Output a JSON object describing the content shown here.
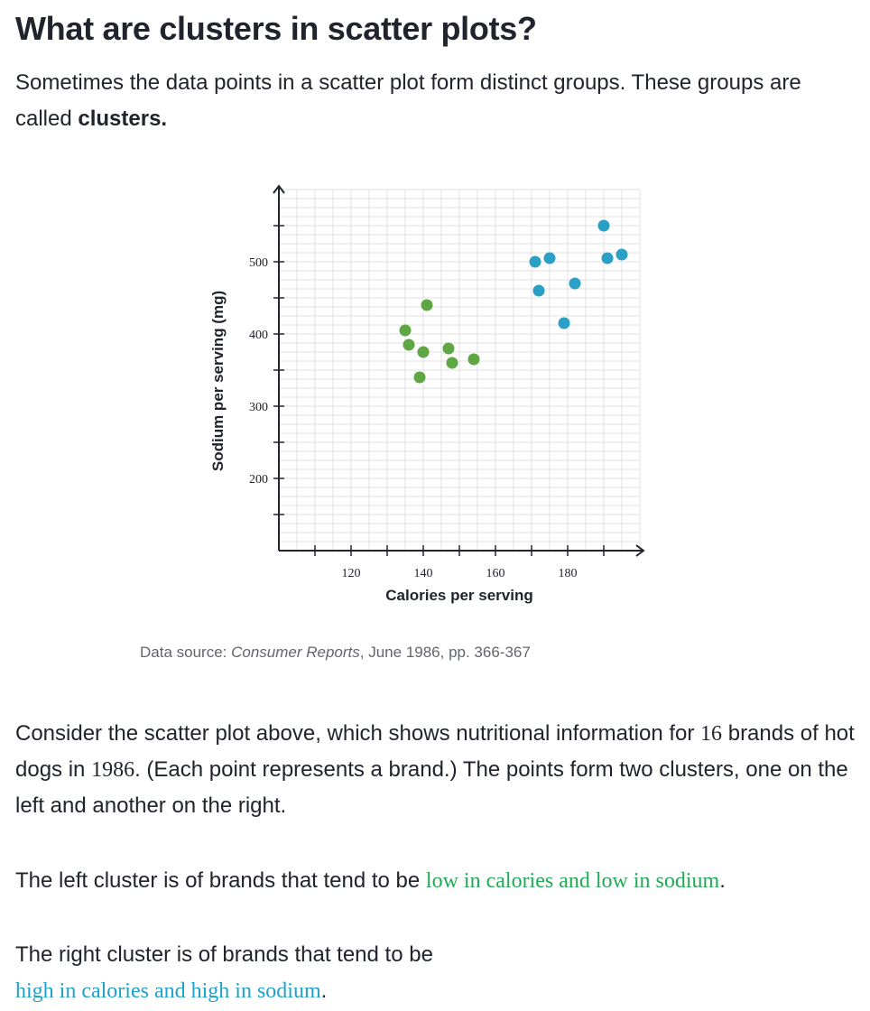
{
  "heading": "What are clusters in scatter plots?",
  "intro": {
    "text_before": "Sometimes the data points in a scatter plot form distinct groups. These groups are called ",
    "bold": "clusters."
  },
  "chart_data": {
    "type": "scatter",
    "title": "",
    "xlabel": "Calories per serving",
    "ylabel": "Sodium per serving (mg)",
    "xlim": [
      100,
      200
    ],
    "ylim": [
      100,
      600
    ],
    "x_ticks": [
      120,
      140,
      160,
      180
    ],
    "y_ticks": [
      200,
      300,
      400,
      500
    ],
    "grid": true,
    "series": [
      {
        "color": "#5fa744",
        "points": [
          {
            "x": 135,
            "y": 405
          },
          {
            "x": 136,
            "y": 385
          },
          {
            "x": 140,
            "y": 375
          },
          {
            "x": 141,
            "y": 440
          },
          {
            "x": 139,
            "y": 340
          },
          {
            "x": 147,
            "y": 380
          },
          {
            "x": 148,
            "y": 360
          },
          {
            "x": 154,
            "y": 365
          }
        ]
      },
      {
        "color": "#2c9fc4",
        "points": [
          {
            "x": 171,
            "y": 500
          },
          {
            "x": 175,
            "y": 505
          },
          {
            "x": 172,
            "y": 460
          },
          {
            "x": 182,
            "y": 470
          },
          {
            "x": 179,
            "y": 415
          },
          {
            "x": 190,
            "y": 550
          },
          {
            "x": 191,
            "y": 505
          },
          {
            "x": 195,
            "y": 510
          }
        ]
      }
    ]
  },
  "source": {
    "prefix": "Data source: ",
    "publication": "Consumer Reports",
    "suffix": ", June 1986, pp. 366-367"
  },
  "paragraph1": {
    "a": "Consider the scatter plot above, which shows nutritional information for ",
    "n1": "16",
    "b": " brands of hot dogs in ",
    "n2": "1986",
    "c": ". (Each point represents a brand.) The points form two clusters, one on the left and another on the right."
  },
  "paragraph2": {
    "a": "The left cluster is of brands that tend to be ",
    "highlight": "low in calories and low in sodium",
    "b": "."
  },
  "paragraph3": {
    "a": "The right cluster is of brands that tend to be",
    "highlight": "high in calories and high in sodium",
    "b": "."
  },
  "colors": {
    "text": "#21242c",
    "muted": "#62656c",
    "green_highlight": "#1fab54",
    "blue_highlight": "#1fa1c9",
    "grid": "#e0e0e0"
  }
}
